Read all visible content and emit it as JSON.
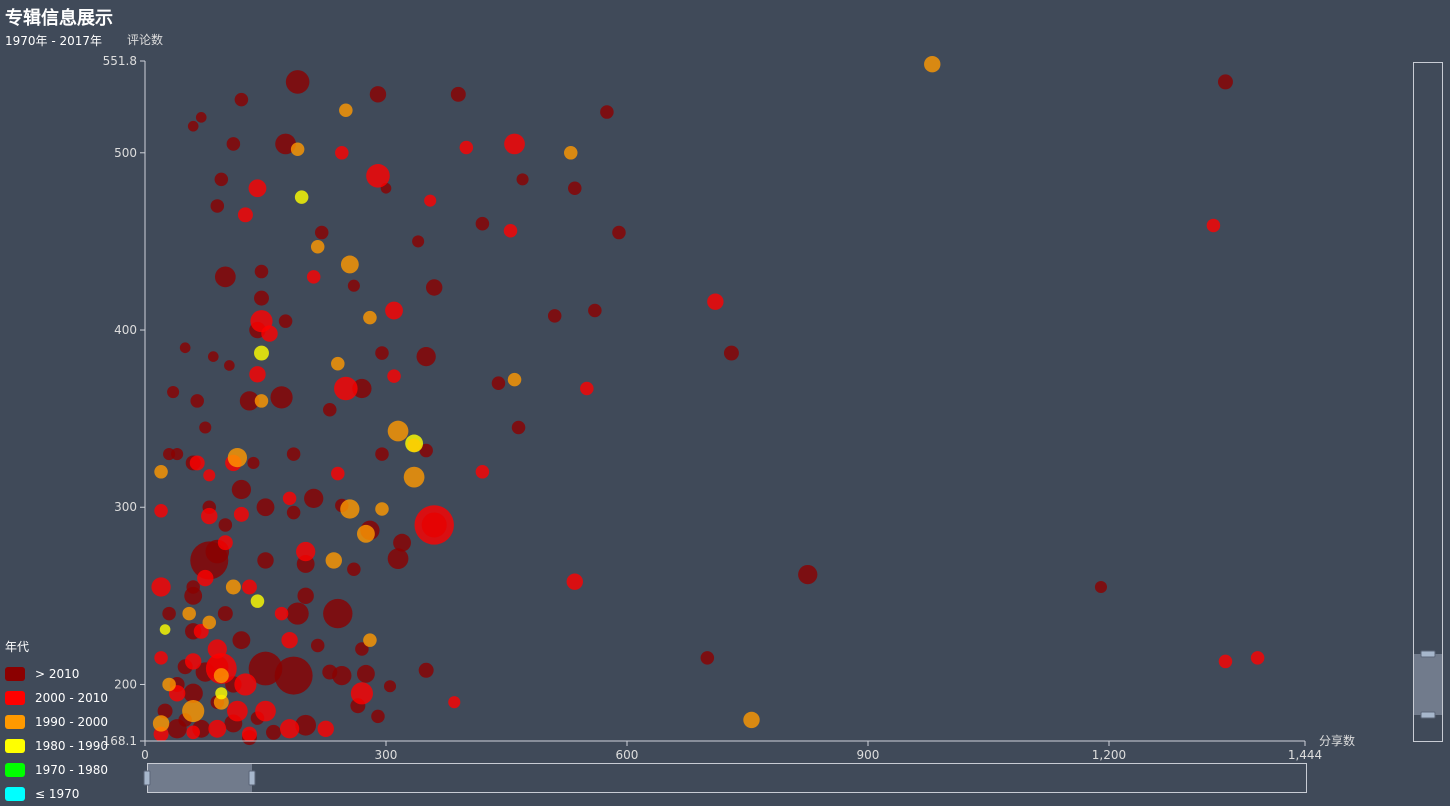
{
  "chart_data": {
    "type": "scatter",
    "title": "专辑信息展示",
    "subtitle": "1970年 - 2017年",
    "xlabel": "分享数",
    "ylabel": "评论数",
    "xlim": [
      0,
      1444
    ],
    "ylim": [
      168.1,
      551.8
    ],
    "xticks": [
      "0",
      "300",
      "600",
      "900",
      "1,200",
      "1,444"
    ],
    "yticks": [
      "168.1",
      "200",
      "300",
      "400",
      "500",
      "551.8"
    ],
    "legend_title": "年代",
    "legend_placement": "bottom-left",
    "grid": false,
    "categories": [
      {
        "label": "> 2010",
        "color": "#8b0000"
      },
      {
        "label": "2000 - 2010",
        "color": "#ff0000"
      },
      {
        "label": "1990 - 2000",
        "color": "#ff9900"
      },
      {
        "label": "1980 - 1990",
        "color": "#ffff00"
      },
      {
        "label": "1970 - 1980",
        "color": "#00ff00"
      },
      {
        "label": "≤ 1970",
        "color": "#00ffff"
      }
    ],
    "series": [
      {
        "name": "> 2010",
        "points": [
          [
            190,
            540,
            15
          ],
          [
            290,
            533,
            10
          ],
          [
            390,
            533,
            9
          ],
          [
            575,
            523,
            8
          ],
          [
            120,
            530,
            8
          ],
          [
            175,
            505,
            13
          ],
          [
            470,
            485,
            7
          ],
          [
            535,
            480,
            8
          ],
          [
            590,
            455,
            8
          ],
          [
            420,
            460,
            8
          ],
          [
            340,
            450,
            7
          ],
          [
            95,
            485,
            8
          ],
          [
            90,
            470,
            8
          ],
          [
            110,
            505,
            8
          ],
          [
            220,
            455,
            8
          ],
          [
            300,
            480,
            6
          ],
          [
            100,
            430,
            13
          ],
          [
            145,
            433,
            8
          ],
          [
            360,
            424,
            10
          ],
          [
            145,
            418,
            9
          ],
          [
            510,
            408,
            8
          ],
          [
            560,
            411,
            8
          ],
          [
            175,
            405,
            8
          ],
          [
            140,
            400,
            10
          ],
          [
            350,
            385,
            12
          ],
          [
            295,
            387,
            8
          ],
          [
            440,
            370,
            8
          ],
          [
            270,
            367,
            12
          ],
          [
            230,
            355,
            8
          ],
          [
            130,
            360,
            12
          ],
          [
            170,
            362,
            14
          ],
          [
            465,
            345,
            8
          ],
          [
            135,
            325,
            7
          ],
          [
            185,
            330,
            8
          ],
          [
            295,
            330,
            8
          ],
          [
            210,
            305,
            12
          ],
          [
            350,
            332,
            8
          ],
          [
            245,
            301,
            8
          ],
          [
            120,
            310,
            12
          ],
          [
            150,
            300,
            11
          ],
          [
            185,
            297,
            8
          ],
          [
            100,
            290,
            8
          ],
          [
            280,
            287,
            12
          ],
          [
            360,
            290,
            16
          ],
          [
            320,
            280,
            11
          ],
          [
            315,
            271,
            13
          ],
          [
            80,
            270,
            25
          ],
          [
            90,
            275,
            15
          ],
          [
            150,
            270,
            10
          ],
          [
            200,
            268,
            11
          ],
          [
            260,
            265,
            8
          ],
          [
            200,
            250,
            10
          ],
          [
            240,
            240,
            19
          ],
          [
            270,
            220,
            8
          ],
          [
            215,
            222,
            8
          ],
          [
            190,
            240,
            14
          ],
          [
            60,
            230,
            10
          ],
          [
            120,
            225,
            11
          ],
          [
            150,
            209,
            22
          ],
          [
            185,
            205,
            25
          ],
          [
            75,
            207,
            12
          ],
          [
            50,
            210,
            9
          ],
          [
            110,
            200,
            10
          ],
          [
            90,
            210,
            14
          ],
          [
            230,
            207,
            9
          ],
          [
            245,
            205,
            12
          ],
          [
            275,
            206,
            11
          ],
          [
            305,
            199,
            7
          ],
          [
            265,
            188,
            9
          ],
          [
            350,
            208,
            9
          ],
          [
            290,
            182,
            8
          ],
          [
            200,
            177,
            13
          ],
          [
            140,
            181,
            8
          ],
          [
            110,
            178,
            11
          ],
          [
            70,
            175,
            11
          ],
          [
            160,
            173,
            9
          ],
          [
            130,
            170,
            9
          ],
          [
            40,
            175,
            12
          ],
          [
            825,
            262,
            12
          ],
          [
            1190,
            255,
            7
          ],
          [
            700,
            215,
            8
          ],
          [
            730,
            387,
            9
          ],
          [
            1345,
            540,
            9
          ],
          [
            60,
            325,
            9
          ],
          [
            40,
            330,
            7
          ],
          [
            30,
            330,
            7
          ],
          [
            75,
            345,
            7
          ],
          [
            65,
            360,
            8
          ],
          [
            80,
            300,
            8
          ],
          [
            60,
            250,
            11
          ],
          [
            30,
            240,
            8
          ],
          [
            100,
            240,
            9
          ],
          [
            40,
            200,
            9
          ],
          [
            60,
            195,
            12
          ],
          [
            90,
            190,
            8
          ],
          [
            25,
            185,
            9
          ],
          [
            50,
            180,
            8
          ],
          [
            60,
            255,
            8
          ],
          [
            35,
            365,
            7
          ],
          [
            260,
            425,
            7
          ],
          [
            85,
            385,
            6
          ],
          [
            50,
            390,
            6
          ],
          [
            60,
            515,
            6
          ],
          [
            70,
            520,
            6
          ],
          [
            105,
            380,
            6
          ]
        ]
      },
      {
        "name": "2000 - 2010",
        "points": [
          [
            460,
            505,
            13
          ],
          [
            400,
            503,
            8
          ],
          [
            245,
            500,
            8
          ],
          [
            290,
            487,
            15
          ],
          [
            140,
            480,
            11
          ],
          [
            355,
            473,
            7
          ],
          [
            455,
            456,
            8
          ],
          [
            125,
            465,
            9
          ],
          [
            310,
            411,
            11
          ],
          [
            145,
            405,
            14
          ],
          [
            155,
            398,
            10
          ],
          [
            210,
            430,
            8
          ],
          [
            310,
            374,
            8
          ],
          [
            250,
            367,
            15
          ],
          [
            140,
            375,
            10
          ],
          [
            550,
            367,
            8
          ],
          [
            335,
            335,
            8
          ],
          [
            420,
            320,
            8
          ],
          [
            240,
            319,
            8
          ],
          [
            360,
            290,
            26
          ],
          [
            80,
            318,
            7
          ],
          [
            110,
            325,
            10
          ],
          [
            65,
            325,
            9
          ],
          [
            80,
            295,
            10
          ],
          [
            20,
            298,
            8
          ],
          [
            120,
            296,
            9
          ],
          [
            180,
            305,
            8
          ],
          [
            100,
            280,
            9
          ],
          [
            75,
            260,
            10
          ],
          [
            200,
            275,
            12
          ],
          [
            20,
            255,
            12
          ],
          [
            130,
            255,
            9
          ],
          [
            535,
            258,
            10
          ],
          [
            170,
            240,
            8
          ],
          [
            70,
            230,
            9
          ],
          [
            180,
            225,
            10
          ],
          [
            90,
            220,
            12
          ],
          [
            95,
            209,
            20
          ],
          [
            125,
            200,
            14
          ],
          [
            150,
            185,
            13
          ],
          [
            270,
            195,
            14
          ],
          [
            40,
            195,
            10
          ],
          [
            20,
            215,
            8
          ],
          [
            60,
            213,
            10
          ],
          [
            115,
            185,
            13
          ],
          [
            180,
            175,
            12
          ],
          [
            225,
            175,
            10
          ],
          [
            90,
            175,
            11
          ],
          [
            130,
            172,
            9
          ],
          [
            60,
            173,
            8
          ],
          [
            20,
            172,
            9
          ],
          [
            710,
            416,
            10
          ],
          [
            1330,
            459,
            8
          ],
          [
            1345,
            213,
            8
          ],
          [
            1385,
            215,
            8
          ],
          [
            385,
            190,
            7
          ]
        ]
      },
      {
        "name": "1990 - 2000",
        "points": [
          [
            980,
            550,
            10
          ],
          [
            250,
            524,
            8
          ],
          [
            530,
            500,
            8
          ],
          [
            190,
            502,
            8
          ],
          [
            215,
            447,
            8
          ],
          [
            255,
            437,
            11
          ],
          [
            280,
            407,
            8
          ],
          [
            240,
            381,
            8
          ],
          [
            460,
            372,
            8
          ],
          [
            145,
            360,
            8
          ],
          [
            315,
            343,
            13
          ],
          [
            335,
            317,
            13
          ],
          [
            115,
            328,
            12
          ],
          [
            20,
            320,
            8
          ],
          [
            255,
            299,
            12
          ],
          [
            295,
            299,
            8
          ],
          [
            275,
            285,
            11
          ],
          [
            235,
            270,
            10
          ],
          [
            110,
            255,
            9
          ],
          [
            55,
            240,
            8
          ],
          [
            80,
            235,
            8
          ],
          [
            280,
            225,
            8
          ],
          [
            95,
            205,
            9
          ],
          [
            30,
            200,
            8
          ],
          [
            95,
            190,
            9
          ],
          [
            60,
            185,
            14
          ],
          [
            20,
            178,
            10
          ],
          [
            755,
            180,
            10
          ]
        ]
      },
      {
        "name": "1980 - 1990",
        "points": [
          [
            195,
            475,
            8
          ],
          [
            145,
            387,
            9
          ],
          [
            335,
            336,
            11
          ],
          [
            140,
            247,
            8
          ],
          [
            25,
            231,
            6
          ],
          [
            95,
            195,
            7
          ]
        ]
      },
      {
        "name": "1970 - 1980",
        "points": []
      },
      {
        "name": "≤ 1970",
        "points": []
      }
    ]
  }
}
